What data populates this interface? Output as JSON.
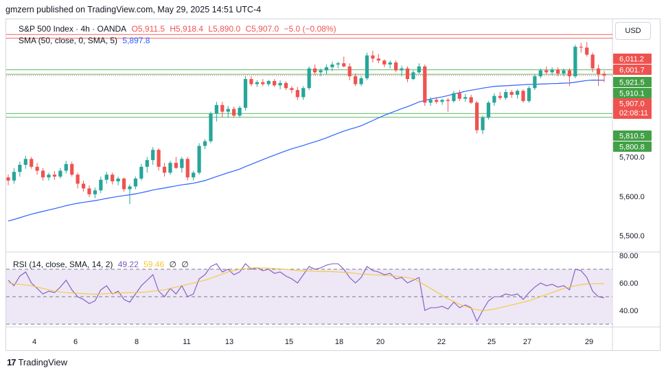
{
  "header": {
    "caption": "gmzern published on TradingView.com, May 29, 2025 14:51 UTC-4"
  },
  "legend": {
    "symbol": "S&P 500 Index · 4h · OANDA",
    "open": "O5,911.5",
    "high": "H5,918.4",
    "low": "L5,890.0",
    "close": "C5,907.0",
    "change": "−5.0 (−0.08%)",
    "sma_label": "SMA (50, close, 0, SMA, 5)",
    "sma_value": "5,897.8",
    "rsi_label": "RSI (14, close, SMA, 14, 2)",
    "rsi_value": "49.22",
    "rsi_ma_value": "59.46",
    "rsi_extra_1": "∅",
    "rsi_extra_2": "∅"
  },
  "currency": "USD",
  "brand": {
    "logo_text": "17",
    "name": "TradingView"
  },
  "colors": {
    "up": "#26a69a",
    "down": "#ef5350",
    "sma": "#2962ff",
    "rsi": "#7e57c2",
    "rsi_ma": "#f7c72f",
    "resistance": "#f28b8b",
    "support": "#4caf50",
    "rsi_band": "#ede7f6"
  },
  "chart_data": [
    {
      "type": "candlestick",
      "x_labels": [
        "4",
        "6",
        "8",
        "11",
        "13",
        "15",
        "18",
        "20",
        "22",
        "25",
        "27",
        "29"
      ],
      "y_ticks": [
        5500,
        5600,
        5700
      ],
      "y_tick_labels": [
        "5,500.0",
        "5,600.0",
        "5,700.0"
      ],
      "ylim": [
        5460,
        6050
      ],
      "price_tags": [
        {
          "label": "6,011.2",
          "value": 6011.2,
          "color": "#ef5350",
          "role": "resistance"
        },
        {
          "label": "6,001.7",
          "value": 6001.7,
          "color": "#ef5350",
          "role": "resistance"
        },
        {
          "label": "5,921.5",
          "value": 5921.5,
          "color": "#43a047",
          "role": "pivot"
        },
        {
          "label": "5,910.1",
          "value": 5910.1,
          "color": "#43a047",
          "role": "pivot"
        },
        {
          "label": "5,907.0",
          "value": 5907.0,
          "color": "#ef5350",
          "role": "last",
          "countdown": "02:08:11"
        },
        {
          "label": "5,810.5",
          "value": 5810.5,
          "color": "#43a047",
          "role": "support"
        },
        {
          "label": "5,800.8",
          "value": 5800.8,
          "color": "#43a047",
          "role": "support"
        }
      ],
      "horizontal_levels": [
        {
          "value": 6011.2,
          "color": "#ef5350"
        },
        {
          "value": 6001.7,
          "color": "#ef5350"
        },
        {
          "value": 5921.5,
          "color": "#4caf50"
        },
        {
          "value": 5910.1,
          "color": "#4caf50"
        },
        {
          "value": 5810.5,
          "color": "#4caf50"
        },
        {
          "value": 5800.8,
          "color": "#4caf50"
        }
      ],
      "candles": [
        [
          5648,
          5655,
          5628,
          5640
        ],
        [
          5640,
          5672,
          5632,
          5662
        ],
        [
          5662,
          5688,
          5650,
          5680
        ],
        [
          5680,
          5703,
          5670,
          5695
        ],
        [
          5695,
          5700,
          5670,
          5675
        ],
        [
          5675,
          5685,
          5655,
          5665
        ],
        [
          5665,
          5672,
          5640,
          5648
        ],
        [
          5648,
          5660,
          5640,
          5655
        ],
        [
          5655,
          5664,
          5642,
          5650
        ],
        [
          5650,
          5672,
          5645,
          5665
        ],
        [
          5665,
          5690,
          5658,
          5682
        ],
        [
          5682,
          5688,
          5650,
          5655
        ],
        [
          5655,
          5660,
          5620,
          5632
        ],
        [
          5632,
          5640,
          5612,
          5620
        ],
        [
          5620,
          5628,
          5598,
          5605
        ],
        [
          5605,
          5622,
          5595,
          5615
        ],
        [
          5615,
          5650,
          5608,
          5642
        ],
        [
          5642,
          5662,
          5632,
          5655
        ],
        [
          5655,
          5660,
          5630,
          5638
        ],
        [
          5638,
          5650,
          5628,
          5645
        ],
        [
          5645,
          5648,
          5612,
          5618
        ],
        [
          5618,
          5630,
          5580,
          5625
        ],
        [
          5625,
          5650,
          5618,
          5645
        ],
        [
          5645,
          5682,
          5640,
          5675
        ],
        [
          5675,
          5700,
          5660,
          5692
        ],
        [
          5692,
          5725,
          5680,
          5718
        ],
        [
          5718,
          5722,
          5665,
          5675
        ],
        [
          5675,
          5685,
          5650,
          5660
        ],
        [
          5660,
          5690,
          5655,
          5685
        ],
        [
          5685,
          5700,
          5670,
          5672
        ],
        [
          5672,
          5700,
          5660,
          5695
        ],
        [
          5695,
          5700,
          5640,
          5648
        ],
        [
          5648,
          5665,
          5640,
          5660
        ],
        [
          5660,
          5735,
          5655,
          5728
        ],
        [
          5728,
          5745,
          5720,
          5740
        ],
        [
          5740,
          5815,
          5735,
          5810
        ],
        [
          5810,
          5840,
          5790,
          5832
        ],
        [
          5832,
          5840,
          5800,
          5815
        ],
        [
          5815,
          5830,
          5800,
          5822
        ],
        [
          5822,
          5828,
          5800,
          5805
        ],
        [
          5805,
          5830,
          5800,
          5825
        ],
        [
          5825,
          5905,
          5818,
          5898
        ],
        [
          5898,
          5905,
          5880,
          5885
        ],
        [
          5885,
          5895,
          5878,
          5890
        ],
        [
          5890,
          5898,
          5880,
          5885
        ],
        [
          5885,
          5896,
          5880,
          5893
        ],
        [
          5893,
          5898,
          5878,
          5882
        ],
        [
          5882,
          5895,
          5872,
          5888
        ],
        [
          5888,
          5892,
          5870,
          5875
        ],
        [
          5875,
          5880,
          5862,
          5870
        ],
        [
          5870,
          5878,
          5845,
          5852
        ],
        [
          5852,
          5880,
          5845,
          5875
        ],
        [
          5875,
          5930,
          5870,
          5925
        ],
        [
          5925,
          5935,
          5908,
          5915
        ],
        [
          5915,
          5925,
          5905,
          5920
        ],
        [
          5920,
          5935,
          5910,
          5928
        ],
        [
          5928,
          5942,
          5918,
          5935
        ],
        [
          5935,
          5942,
          5925,
          5938
        ],
        [
          5938,
          5955,
          5928,
          5930
        ],
        [
          5930,
          5938,
          5895,
          5905
        ],
        [
          5905,
          5912,
          5880,
          5885
        ],
        [
          5885,
          5905,
          5880,
          5900
        ],
        [
          5900,
          5965,
          5895,
          5958
        ],
        [
          5958,
          5970,
          5940,
          5950
        ],
        [
          5950,
          5962,
          5938,
          5945
        ],
        [
          5945,
          5948,
          5928,
          5935
        ],
        [
          5935,
          5945,
          5925,
          5940
        ],
        [
          5940,
          5945,
          5915,
          5920
        ],
        [
          5920,
          5932,
          5905,
          5925
        ],
        [
          5925,
          5930,
          5890,
          5898
        ],
        [
          5898,
          5920,
          5895,
          5915
        ],
        [
          5915,
          5938,
          5912,
          5930
        ],
        [
          5930,
          5935,
          5830,
          5838
        ],
        [
          5838,
          5852,
          5830,
          5845
        ],
        [
          5845,
          5852,
          5835,
          5840
        ],
        [
          5840,
          5848,
          5832,
          5845
        ],
        [
          5845,
          5850,
          5815,
          5842
        ],
        [
          5842,
          5868,
          5838,
          5862
        ],
        [
          5862,
          5870,
          5842,
          5848
        ],
        [
          5848,
          5860,
          5840,
          5852
        ],
        [
          5852,
          5858,
          5835,
          5838
        ],
        [
          5838,
          5842,
          5760,
          5768
        ],
        [
          5768,
          5805,
          5758,
          5800
        ],
        [
          5800,
          5842,
          5795,
          5838
        ],
        [
          5838,
          5862,
          5830,
          5855
        ],
        [
          5855,
          5865,
          5845,
          5850
        ],
        [
          5850,
          5872,
          5845,
          5865
        ],
        [
          5865,
          5870,
          5850,
          5858
        ],
        [
          5858,
          5872,
          5848,
          5868
        ],
        [
          5868,
          5872,
          5838,
          5842
        ],
        [
          5842,
          5880,
          5838,
          5875
        ],
        [
          5875,
          5910,
          5870,
          5905
        ],
        [
          5905,
          5925,
          5900,
          5920
        ],
        [
          5920,
          5930,
          5910,
          5915
        ],
        [
          5915,
          5928,
          5908,
          5922
        ],
        [
          5922,
          5928,
          5905,
          5912
        ],
        [
          5912,
          5925,
          5905,
          5920
        ],
        [
          5920,
          5925,
          5880,
          5905
        ],
        [
          5905,
          5985,
          5900,
          5980
        ],
        [
          5980,
          5990,
          5965,
          5978
        ],
        [
          5978,
          5992,
          5955,
          5960
        ],
        [
          5960,
          5965,
          5915,
          5925
        ],
        [
          5925,
          5935,
          5880,
          5910
        ],
        [
          5911.5,
          5918.4,
          5890,
          5907
        ]
      ]
    },
    {
      "type": "line",
      "name": "RSI (14, close, SMA, 14, 2)",
      "y_ticks": [
        40,
        60,
        80
      ],
      "y_tick_labels": [
        "40.00",
        "60.00",
        "80.00"
      ],
      "ylim": [
        28,
        82
      ],
      "band": [
        30,
        70
      ],
      "midline": 50,
      "rsi": [
        62,
        58,
        65,
        68,
        60,
        56,
        52,
        54,
        53,
        57,
        62,
        55,
        50,
        48,
        45,
        47,
        55,
        58,
        52,
        54,
        48,
        46,
        52,
        58,
        62,
        66,
        54,
        50,
        56,
        52,
        58,
        50,
        52,
        63,
        66,
        72,
        74,
        68,
        70,
        66,
        68,
        74,
        70,
        71,
        69,
        70,
        67,
        68,
        65,
        63,
        60,
        66,
        72,
        70,
        71,
        73,
        74,
        74,
        70,
        64,
        60,
        64,
        72,
        69,
        68,
        66,
        67,
        63,
        64,
        60,
        62,
        64,
        40,
        42,
        42,
        43,
        41,
        46,
        42,
        44,
        42,
        32,
        40,
        47,
        50,
        50,
        52,
        51,
        52,
        48,
        53,
        57,
        60,
        58,
        59,
        57,
        58,
        55,
        70,
        69,
        64,
        54,
        50,
        49.22
      ],
      "rsi_ma": [
        60,
        59.5,
        59,
        58.5,
        58,
        57,
        56,
        55,
        54,
        53.5,
        53,
        52.8,
        52.5,
        52.2,
        52,
        51.8,
        52,
        52.2,
        52.4,
        52.6,
        52.8,
        53,
        53,
        53.2,
        53.5,
        54,
        54.5,
        55,
        56,
        57,
        58,
        59,
        60,
        61,
        62,
        63.5,
        65,
        66.5,
        68,
        69,
        70,
        70.5,
        71,
        71,
        71,
        70.8,
        70.5,
        70.2,
        70,
        69.5,
        69,
        68.8,
        68.6,
        68.5,
        68.4,
        68.3,
        68.2,
        68,
        67.8,
        67.5,
        67,
        66.5,
        66.3,
        66,
        65.8,
        65.5,
        65.2,
        65,
        64.5,
        64,
        63,
        61,
        58.5,
        56,
        53.5,
        51,
        48.5,
        46.5,
        44.5,
        43,
        41.5,
        40.5,
        40,
        40.3,
        41,
        42,
        43,
        44,
        45,
        46,
        47,
        48.5,
        50,
        51.5,
        53,
        54.5,
        56,
        57,
        58,
        58.8,
        59.3,
        59.5,
        59.5,
        59.46
      ]
    }
  ]
}
